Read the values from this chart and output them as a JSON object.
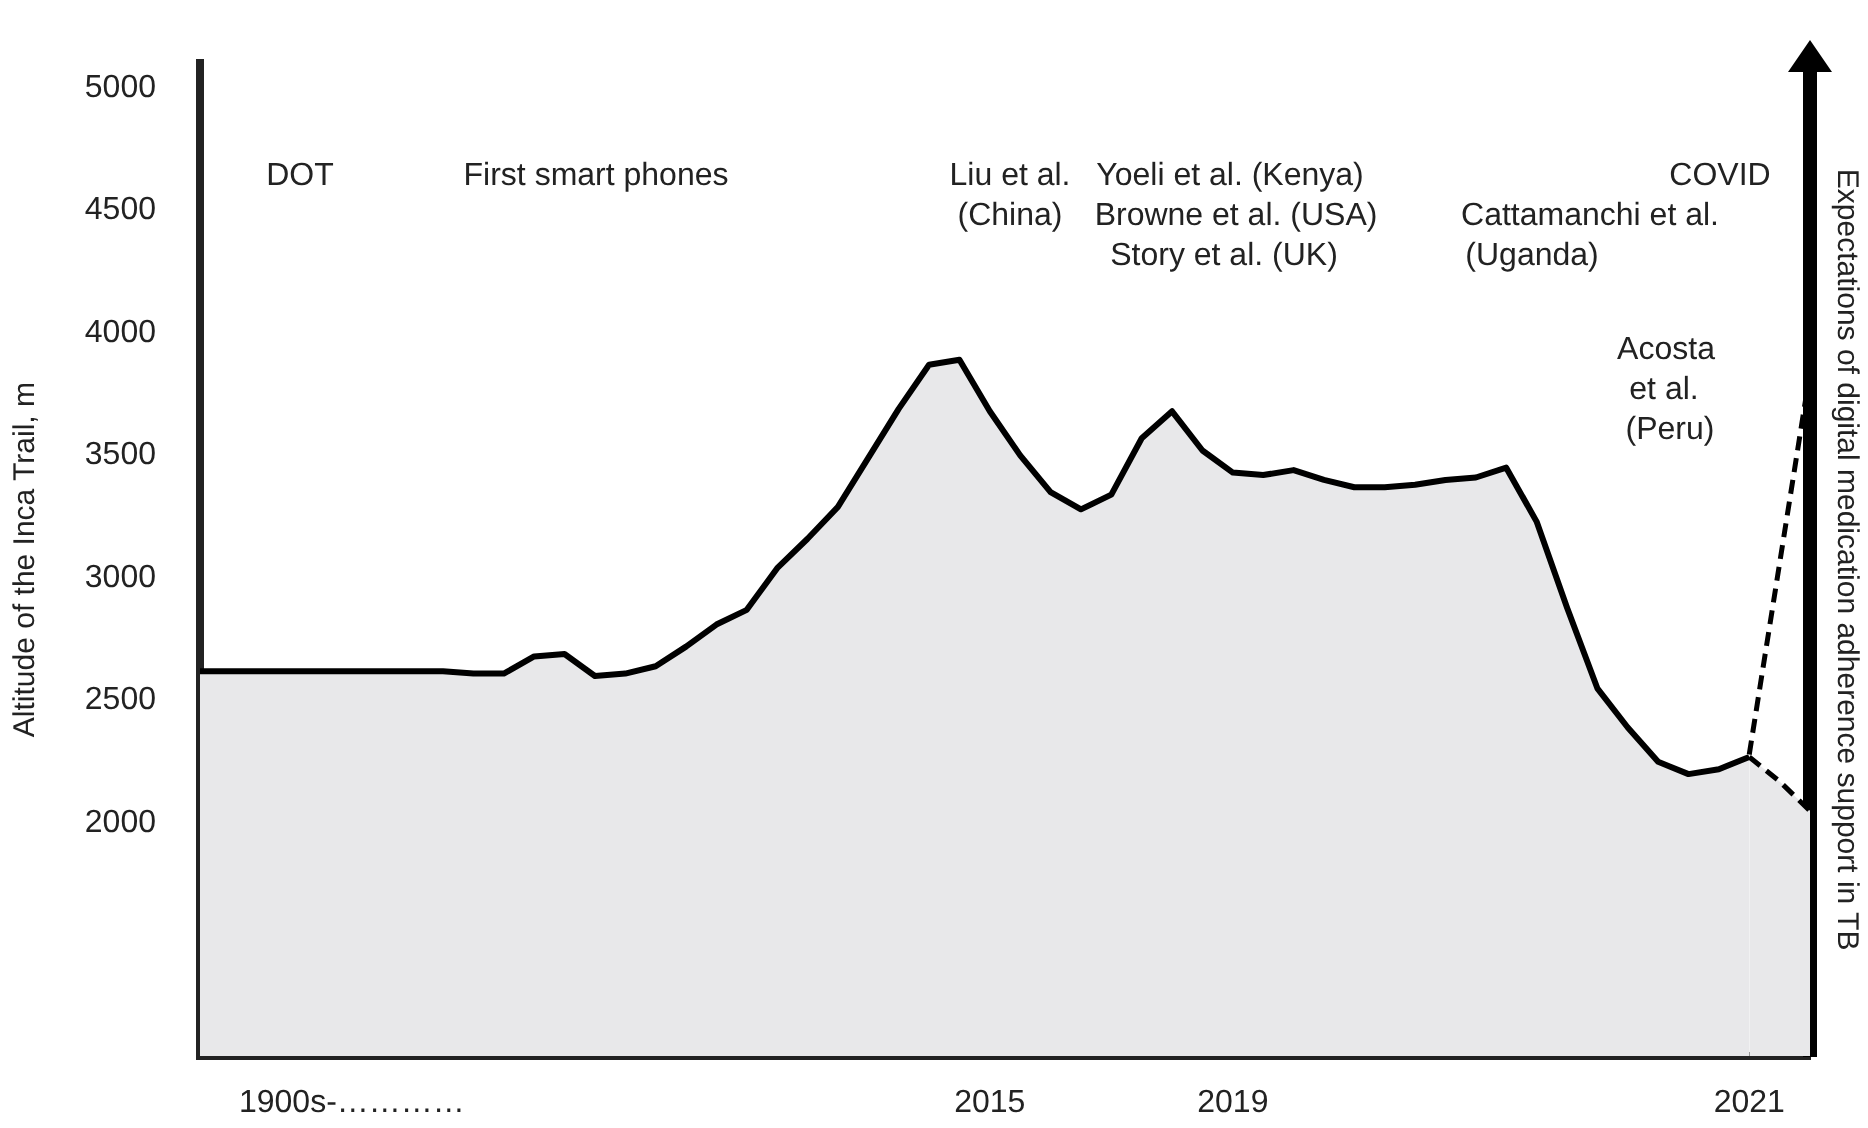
{
  "chart_data": {
    "type": "area",
    "ylabel": "Altitude of the Inca Trail, m",
    "y2label": "Expectations of digital medication adherence support in TB",
    "categories": [
      null,
      null,
      null,
      null,
      null,
      "1900s-…………",
      null,
      null,
      null,
      null,
      null,
      null,
      null,
      null,
      null,
      null,
      null,
      null,
      null,
      null,
      null,
      null,
      null,
      null,
      null,
      null,
      "2015",
      null,
      null,
      null,
      null,
      null,
      null,
      null,
      "2019",
      null,
      null,
      null,
      null,
      null,
      null,
      null,
      null,
      null,
      null,
      null,
      null,
      null,
      null,
      null,
      null,
      "2021",
      null,
      null
    ],
    "ylim": [
      1050,
      5100
    ],
    "yticks": [
      2000,
      2500,
      3000,
      3500,
      4000,
      4500,
      5000
    ],
    "grid": false,
    "legend": false,
    "marker": "none",
    "series": [
      {
        "color": "#000000",
        "values": [
          2620,
          2620,
          2620,
          2620,
          2620,
          2620,
          2620,
          2620,
          2620,
          2610,
          2610,
          2680,
          2690,
          2600,
          2610,
          2640,
          2720,
          2810,
          2870,
          3040,
          3160,
          3290,
          3490,
          3690,
          3870,
          3890,
          3680,
          3500,
          3350,
          3280,
          3340,
          3570,
          3680,
          3520,
          3430,
          3420,
          3440,
          3400,
          3370,
          3370,
          3380,
          3400,
          3410,
          3450,
          3230,
          2880,
          2550,
          2390,
          2250,
          2200,
          2220,
          2270,
          null,
          null
        ]
      },
      {
        "type": "line",
        "color": "#000000",
        "line_style": "dashed",
        "values": [
          null,
          null,
          null,
          null,
          null,
          null,
          null,
          null,
          null,
          null,
          null,
          null,
          null,
          null,
          null,
          null,
          null,
          null,
          null,
          null,
          null,
          null,
          null,
          null,
          null,
          null,
          null,
          null,
          null,
          null,
          null,
          null,
          null,
          null,
          null,
          null,
          null,
          null,
          null,
          null,
          null,
          null,
          null,
          null,
          null,
          null,
          null,
          null,
          null,
          null,
          null,
          2280,
          3060,
          3840
        ]
      },
      {
        "type": "area",
        "color": "#000000",
        "line_style": "dashed",
        "values": [
          null,
          null,
          null,
          null,
          null,
          null,
          null,
          null,
          null,
          null,
          null,
          null,
          null,
          null,
          null,
          null,
          null,
          null,
          null,
          null,
          null,
          null,
          null,
          null,
          null,
          null,
          null,
          null,
          null,
          null,
          null,
          null,
          null,
          null,
          null,
          null,
          null,
          null,
          null,
          null,
          null,
          null,
          null,
          null,
          null,
          null,
          null,
          null,
          null,
          null,
          null,
          2270,
          2170,
          2050
        ]
      }
    ],
    "annotations": [
      "DOT",
      "First smart phones",
      "Liu et al.",
      "(China)",
      "Yoeli et al. (Kenya)",
      "Browne et al. (USA)",
      "Story et al. (UK)",
      "Cattamanchi et al.",
      "(Uganda)",
      "COVID",
      "Acosta",
      "et al.",
      "(Peru)"
    ]
  }
}
